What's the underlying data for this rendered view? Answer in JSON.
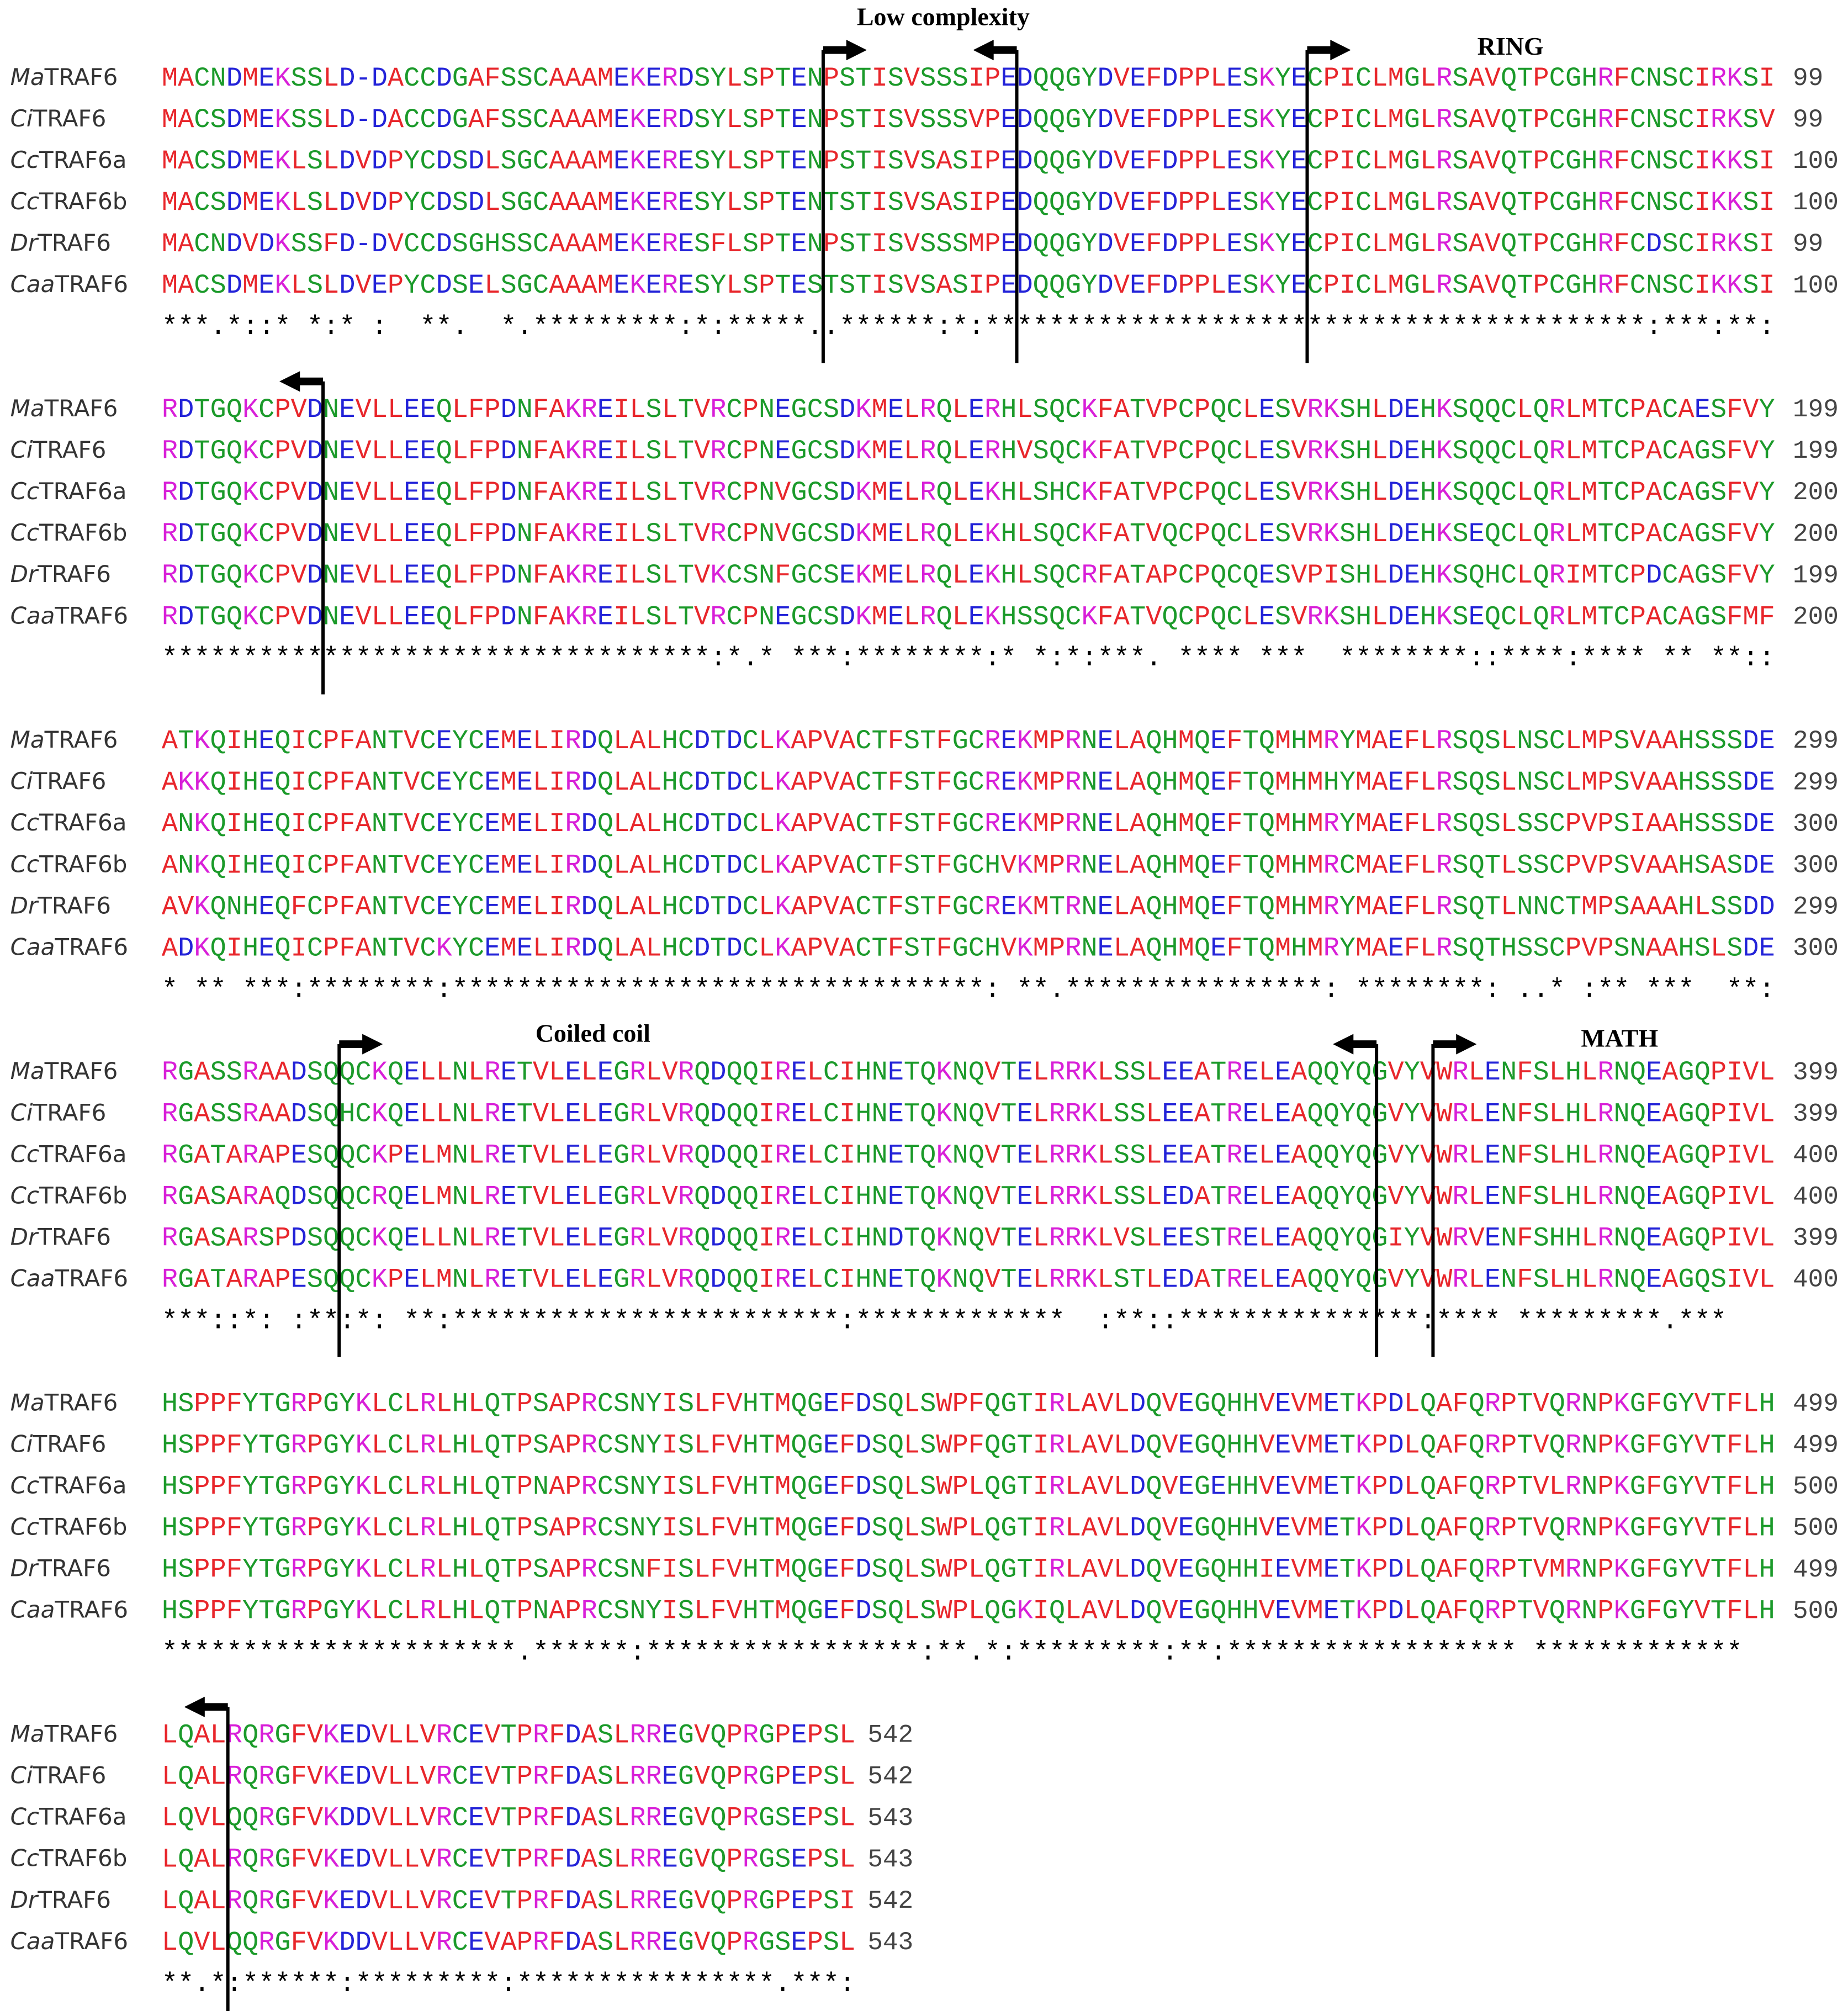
{
  "residue_colors": [
    {
      "color": "#e8262b",
      "residues": "AVFPMILW"
    },
    {
      "color": "#2323d8",
      "residues": "DE-"
    },
    {
      "color": "#d81fd8",
      "residues": "RK"
    },
    {
      "color": "#1b9a2a",
      "residues": "STYHCNGQ"
    }
  ],
  "annotations": [
    {
      "label": "Low complexity"
    },
    {
      "label": "RING"
    },
    {
      "label": "Coiled coil"
    },
    {
      "label": "MATH"
    }
  ],
  "blocks": [
    {
      "rows": [
        {
          "species": "Ma",
          "protein": "TRAF6",
          "sequence": "MACNDMEKSSLD-DACCDGAFSSCAAAMEKERDSYLSPTENPSTISVSSSIPEDQQGYDVEFDPPLESKYECPICLMGLRSAVQTPCGHRFCNSCIRKSI",
          "end": "99"
        },
        {
          "species": "Ci",
          "protein": "TRAF6",
          "sequence": "MACSDMEKSSLD-DACCDGAFSSCAAAMEKERDSYLSPTENPSTISVSSSVPEDQQGYDVEFDPPLESKYECPICLMGLRSAVQTPCGHRFCNSCIRKSV",
          "end": "99"
        },
        {
          "species": "Cc",
          "protein": "TRAF6a",
          "sequence": "MACSDMEKLSLDVDPYCDSDLSGCAAAMEKERESYLSPTENPSTISVSASIPEDQQGYDVEFDPPLESKYECPICLMGLRSAVQTPCGHRFCNSCIKKSI",
          "end": "100"
        },
        {
          "species": "Cc",
          "protein": "TRAF6b",
          "sequence": "MACSDMEKLSLDVDPYCDSDLSGCAAAMEKERESYLSPTENTSTISVSASIPEDQQGYDVEFDPPLESKYECPICLMGLRSAVQTPCGHRFCNSCIKKSI",
          "end": "100"
        },
        {
          "species": "Dr",
          "protein": "TRAF6",
          "sequence": "MACNDVDKSSFD-DVCCDSGHSSCAAAMEKERESFLSPTENPSTISVSSSMPEDQQGYDVEFDPPLESKYECPICLMGLRSAVQTPCGHRFCDSCIRKSI",
          "end": "99"
        },
        {
          "species": "Caa",
          "protein": "TRAF6",
          "sequence": "MACSDMEKLSLDVEPYCDSELSGCAAAMEKERESYLSPTESTSTISVSASIPEDQQGYDVEFDPPLESKYECPICLMGLRSAVQTPCGHRFCNSCIKKSI",
          "end": "100"
        }
      ],
      "conservation": "***.*::* *:* :  **.  *.*********:*:*****..******:*:*****************************************:***:**:"
    },
    {
      "rows": [
        {
          "species": "Ma",
          "protein": "TRAF6",
          "sequence": "RDTGQKCPVDNEVLLEEQLFPDNFAKREILSLTVRCPNEGCSDKMELRQLERHLSQCKFATVPCPQCLESVRKSHLDEHKSQQCLQRLMTCPACAESFVY",
          "end": "199"
        },
        {
          "species": "Ci",
          "protein": "TRAF6",
          "sequence": "RDTGQKCPVDNEVLLEEQLFPDNFAKREILSLTVRCPNEGCSDKMELRQLERHVSQCKFATVPCPQCLESVRKSHLDEHKSQQCLQRLMTCPACAGSFVY",
          "end": "199"
        },
        {
          "species": "Cc",
          "protein": "TRAF6a",
          "sequence": "RDTGQKCPVDNEVLLEEQLFPDNFAKREILSLTVRCPNVGCSDKMELRQLEKHLSHCKFATVPCPQCLESVRKSHLDEHKSQQCLQRLMTCPACAGSFVY",
          "end": "200"
        },
        {
          "species": "Cc",
          "protein": "TRAF6b",
          "sequence": "RDTGQKCPVDNEVLLEEQLFPDNFAKREILSLTVRCPNVGCSDKMELRQLEKHLSQCKFATVQCPQCLESVRKSHLDEHKSEQCLQRLMTCPACAGSFVY",
          "end": "200"
        },
        {
          "species": "Dr",
          "protein": "TRAF6",
          "sequence": "RDTGQKCPVDNEVLLEEQLFPDNFAKREILSLTVKCSNFGCSEKMELRQLEKHLSQCRFATAPCPQCQESVPISHLDEHKSQHCLQRIMTCPDCAGSFVY",
          "end": "199"
        },
        {
          "species": "Caa",
          "protein": "TRAF6",
          "sequence": "RDTGQKCPVDNEVLLEEQLFPDNFAKREILSLTVRCPNEGCSDKMELRQLEKHSSQCKFATVQCPQCLESVRKSHLDEHKSEQCLQRLMTCPACAGSFMF",
          "end": "200"
        }
      ],
      "conservation": "**********************************:*.* ***:********:* *:*:***. **** ***  ********::****:**** ** **::"
    },
    {
      "rows": [
        {
          "species": "Ma",
          "protein": "TRAF6",
          "sequence": "ATKQIHEQICPFANTVCEYCEMELIRDQLALHCDTDCLKAPVACTFSTFGCREKMPRNELAQHMQEFTQMHMRYMAEFLRSQSLNSCLMPSVAAHSSSDE",
          "end": "299"
        },
        {
          "species": "Ci",
          "protein": "TRAF6",
          "sequence": "AKKQIHEQICPFANTVCEYCEMELIRDQLALHCDTDCLKAPVACTFSTFGCREKMPRNELAQHMQEFTQMHMHYMAEFLRSQSLNSCLMPSVAAHSSSDE",
          "end": "299"
        },
        {
          "species": "Cc",
          "protein": "TRAF6a",
          "sequence": "ANKQIHEQICPFANTVCEYCEMELIRDQLALHCDTDCLKAPVACTFSTFGCREKMPRNELAQHMQEFTQMHMRYMAEFLRSQSLSSCPVPSIAAHSSSDE",
          "end": "300"
        },
        {
          "species": "Cc",
          "protein": "TRAF6b",
          "sequence": "ANKQIHEQICPFANTVCEYCEMELIRDQLALHCDTDCLKAPVACTFSTFGCHVKMPRNELAQHMQEFTQMHMRCMAEFLRSQTLSSCPVPSVAAHSASDE",
          "end": "300"
        },
        {
          "species": "Dr",
          "protein": "TRAF6",
          "sequence": "AVKQNHEQFCPFANTVCEYCEMELIRDQLALHCDTDCLKAPVACTFSTFGCREKMTRNELAQHMQEFTQMHMRYMAEFLRSQTLNNCTMPSAAAHLSSDD",
          "end": "299"
        },
        {
          "species": "Caa",
          "protein": "TRAF6",
          "sequence": "ADKQIHEQICPFANTVCKYCEMELIRDQLALHCDTDCLKAPVACTFSTFGCHVKMPRNELAQHMQEFTQMHMRYMAEFLRSQTHSSCPVPSNAAHSLSDE",
          "end": "300"
        }
      ],
      "conservation": "* ** ***:********:*********************************: **.****************: ********: ..* :** ***  **:"
    },
    {
      "rows": [
        {
          "species": "Ma",
          "protein": "TRAF6",
          "sequence": "RGASSRAADSQQCKQELLNLRETVLELEGRLVRQDQQIRELCIHNETQKNQVTELRRKLSSLEEATRELEAQQYQGVYVWRLENFSLHLRNQEAGQPIVL",
          "end": "399"
        },
        {
          "species": "Ci",
          "protein": "TRAF6",
          "sequence": "RGASSRAADSQHCKQELLNLRETVLELEGRLVRQDQQIRELCIHNETQKNQVTELRRKLSSLEEATRELEAQQYQGVYVWRLENFSLHLRNQEAGQPIVL",
          "end": "399"
        },
        {
          "species": "Cc",
          "protein": "TRAF6a",
          "sequence": "RGATARAPESQQCKPELMNLRETVLELEGRLVRQDQQIRELCIHNETQKNQVTELRRKLSSLEEATRELEAQQYQGVYVWRLENFSLHLRNQEAGQPIVL",
          "end": "400"
        },
        {
          "species": "Cc",
          "protein": "TRAF6b",
          "sequence": "RGASARAQDSQQCRQELMNLRETVLELEGRLVRQDQQIRELCIHNETQKNQVTELRRKLSSLEDATRELEAQQYQGVYVWRLENFSLHLRNQEAGQPIVL",
          "end": "400"
        },
        {
          "species": "Dr",
          "protein": "TRAF6",
          "sequence": "RGASARSPDSQQCKQELLNLRETVLELEGRLVRQDQQIRELCIHNDTQKNQVTELRRKLVSLEESTRELEAQQYQGIYVWRVENFSHHLRNQEAGQPIVL",
          "end": "399"
        },
        {
          "species": "Caa",
          "protein": "TRAF6",
          "sequence": "RGATARAPESQQCKPELMNLRETVLELEGRLVRQDQQIRELCIHNETQKNQVTELRRKLSTLEDATRELEAQQYQGVYVWRLENFSLHLRNQEAGQSIVL",
          "end": "400"
        }
      ],
      "conservation": "***::*: :**:*: **:************************:*************  :**::***************:**** *********.***"
    },
    {
      "rows": [
        {
          "species": "Ma",
          "protein": "TRAF6",
          "sequence": "HSPPFYTGRPGYKLCLRLHLQTPSAPRCSNYISLFVHTMQGEFDSQLSWPFQGTIRLAVLDQVEGQHHVEVMETKPDLQAFQRPTVQRNPKGFGYVTFLH",
          "end": "499"
        },
        {
          "species": "Ci",
          "protein": "TRAF6",
          "sequence": "HSPPFYTGRPGYKLCLRLHLQTPSAPRCSNYISLFVHTMQGEFDSQLSWPFQGTIRLAVLDQVEGQHHVEVMETKPDLQAFQRPTVQRNPKGFGYVTFLH",
          "end": "499"
        },
        {
          "species": "Cc",
          "protein": "TRAF6a",
          "sequence": "HSPPFYTGRPGYKLCLRLHLQTPNAPRCSNYISLFVHTMQGEFDSQLSWPLQGTIRLAVLDQVEGEHHVEVMETKPDLQAFQRPTVLRNPKGFGYVTFLH",
          "end": "500"
        },
        {
          "species": "Cc",
          "protein": "TRAF6b",
          "sequence": "HSPPFYTGRPGYKLCLRLHLQTPSAPRCSNYISLFVHTMQGEFDSQLSWPLQGTIRLAVLDQVEGQHHVEVMETKPDLQAFQRPTVQRNPKGFGYVTFLH",
          "end": "500"
        },
        {
          "species": "Dr",
          "protein": "TRAF6",
          "sequence": "HSPPFYTGRPGYKLCLRLHLQTPSAPRCSNFISLFVHTMQGEFDSQLSWPLQGTIRLAVLDQVEGQHHIEVMETKPDLQAFQRPTVMRNPKGFGYVTFLH",
          "end": "499"
        },
        {
          "species": "Caa",
          "protein": "TRAF6",
          "sequence": "HSPPFYTGRPGYKLCLRLHLQTPNAPRCSNYISLFVHTMQGEFDSQLSWPLQGKIQLAVLDQVEGQHHVEVMETKPDLQAFQRPTVQRNPKGFGYVTFLH",
          "end": "500"
        }
      ],
      "conservation": "**********************.******:*****************:**.*:*********:**:****************** *************"
    },
    {
      "rows": [
        {
          "species": "Ma",
          "protein": "TRAF6",
          "sequence": "LQALRQRGFVKEDVLLVRCEVTPRFDASLRREGVQPRGPEPSL",
          "end": "542"
        },
        {
          "species": "Ci",
          "protein": "TRAF6",
          "sequence": "LQALRQRGFVKEDVLLVRCEVTPRFDASLRREGVQPRGPEPSL",
          "end": "542"
        },
        {
          "species": "Cc",
          "protein": "TRAF6a",
          "sequence": "LQVLQQRGFVKDDVLLVRCEVTPRFDASLRREGVQPRGSEPSL",
          "end": "543"
        },
        {
          "species": "Cc",
          "protein": "TRAF6b",
          "sequence": "LQALRQRGFVKEDVLLVRCEVTPRFDASLRREGVQPRGSEPSL",
          "end": "543"
        },
        {
          "species": "Dr",
          "protein": "TRAF6",
          "sequence": "LQALRQRGFVKEDVLLVRCEVTPRFDASLRREGVQPRGPEPSI",
          "end": "542"
        },
        {
          "species": "Caa",
          "protein": "TRAF6",
          "sequence": "LQVLQQRGFVKDDVLLVRCEVAPRFDASLRREGVQPRGSEPSL",
          "end": "543"
        }
      ],
      "conservation": "**.*:******:*********:****************.***:"
    }
  ]
}
